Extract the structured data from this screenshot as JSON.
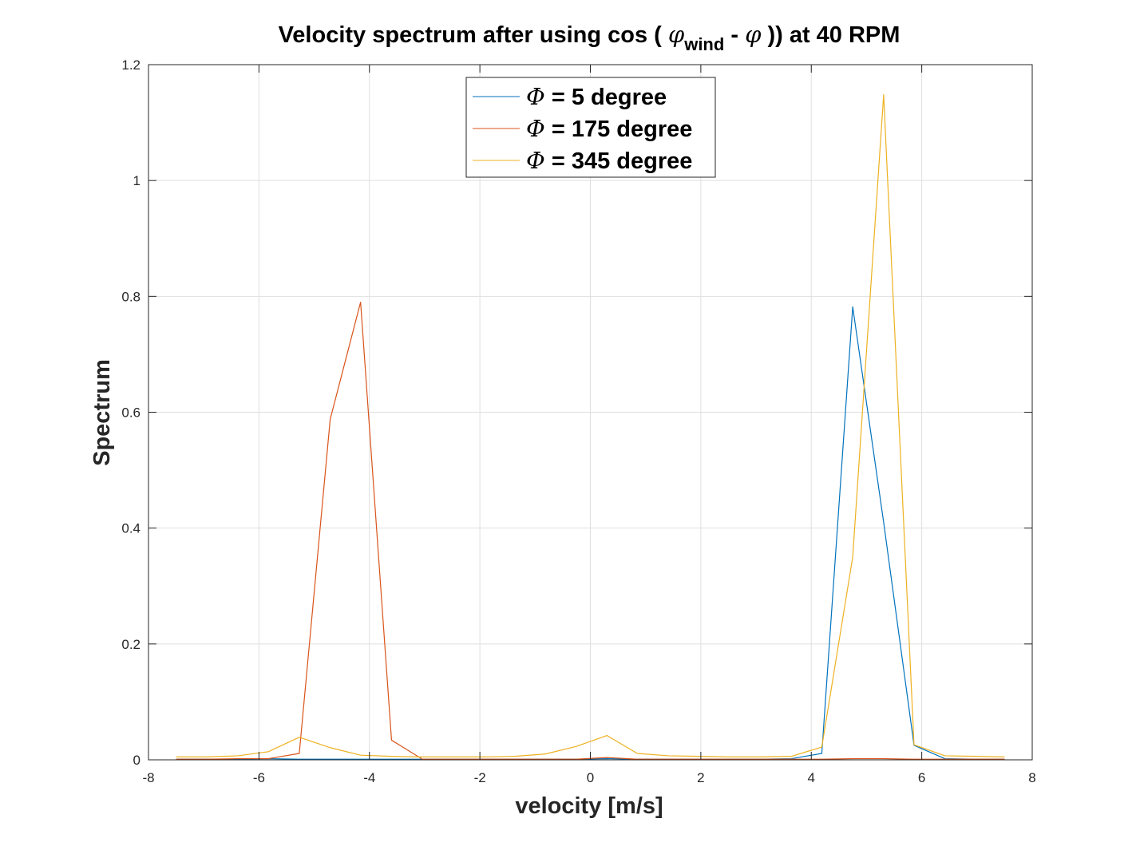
{
  "chart_data": {
    "type": "line",
    "title": {
      "prefix": "Velocity spectrum after using cos ( ",
      "phi1": "φ",
      "sub": "wind",
      "mid": " - ",
      "phi2": "φ",
      "suffix": " )) at 40 RPM"
    },
    "xlabel": "velocity [m/s]",
    "ylabel": "Spectrum",
    "xlim": [
      -8,
      8
    ],
    "ylim": [
      0,
      1.2
    ],
    "xticks": [
      -8,
      -6,
      -4,
      -2,
      0,
      2,
      4,
      6,
      8
    ],
    "yticks": [
      0,
      0.2,
      0.4,
      0.6,
      0.8,
      1,
      1.2
    ],
    "xtick_labels": [
      "-8",
      "-6",
      "-4",
      "-2",
      "0",
      "2",
      "4",
      "6",
      "8"
    ],
    "ytick_labels": [
      "0",
      "0.2",
      "0.4",
      "0.6",
      "0.8",
      "1",
      "1.2"
    ],
    "grid": true,
    "legend_position": "top-center",
    "x": [
      -7.5,
      -6.94,
      -6.38,
      -5.83,
      -5.27,
      -4.71,
      -4.16,
      -3.6,
      -3.04,
      -2.49,
      -1.93,
      -1.37,
      -0.82,
      -0.26,
      0.3,
      0.85,
      1.41,
      1.97,
      2.52,
      3.08,
      3.64,
      4.19,
      4.75,
      5.31,
      5.86,
      6.42,
      6.98,
      7.5
    ],
    "series": [
      {
        "name": "Φ = 5 degree",
        "color": "#0072BD",
        "values": [
          0.001,
          0.001,
          0.001,
          0.002,
          0.001,
          0.001,
          0.001,
          0.001,
          0.001,
          0.001,
          0.001,
          0.001,
          0.001,
          0.001,
          0.002,
          0.001,
          0.001,
          0.001,
          0.001,
          0.001,
          0.002,
          0.011,
          0.782,
          0.41,
          0.025,
          0.002,
          0.001,
          0.001
        ]
      },
      {
        "name": "Φ = 175 degree",
        "color": "#D95319",
        "values": [
          0.001,
          0.001,
          0.002,
          0.002,
          0.011,
          0.588,
          0.79,
          0.034,
          0.001,
          0.001,
          0.001,
          0.001,
          0.001,
          0.001,
          0.004,
          0.001,
          0.001,
          0.001,
          0.001,
          0.001,
          0.001,
          0.001,
          0.002,
          0.002,
          0.001,
          0.001,
          0.001,
          0.001
        ]
      },
      {
        "name": "Φ = 345 degree",
        "color": "#EDB120",
        "values": [
          0.005,
          0.005,
          0.007,
          0.014,
          0.039,
          0.021,
          0.008,
          0.006,
          0.005,
          0.005,
          0.005,
          0.006,
          0.01,
          0.023,
          0.042,
          0.011,
          0.007,
          0.006,
          0.005,
          0.005,
          0.006,
          0.022,
          0.35,
          1.148,
          0.026,
          0.007,
          0.006,
          0.005
        ]
      }
    ],
    "legend": [
      {
        "symbol": "Φ",
        "text": " = 5 degree"
      },
      {
        "symbol": "Φ",
        "text": " = 175 degree"
      },
      {
        "symbol": "Φ",
        "text": " = 345 degree"
      }
    ]
  }
}
